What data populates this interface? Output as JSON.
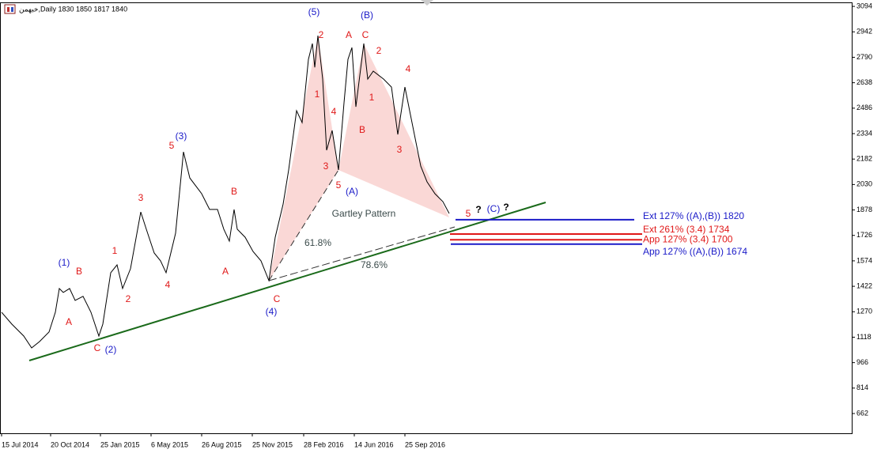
{
  "chart_data": {
    "type": "line",
    "title": "خبهمن,Daily  1830 1850 1817 1840",
    "color": "#000000",
    "x": [
      0,
      13,
      28,
      38,
      48,
      60,
      68,
      73,
      78,
      86,
      93,
      103,
      113,
      123,
      128,
      138,
      146,
      153,
      163,
      176,
      183,
      193,
      201,
      208,
      220,
      230,
      238,
      253,
      263,
      273,
      281,
      288,
      294,
      298,
      308,
      318,
      328,
      338,
      346,
      356,
      363,
      373,
      380,
      388,
      393,
      396,
      400,
      406,
      411,
      418,
      426,
      433,
      438,
      443,
      448,
      453,
      458,
      463,
      470,
      483,
      493,
      501,
      510,
      518,
      530,
      538,
      548,
      558,
      566
    ],
    "values": [
      1267,
      1196,
      1125,
      1054,
      1092,
      1149,
      1267,
      1409,
      1385,
      1409,
      1338,
      1362,
      1267,
      1125,
      1196,
      1503,
      1550,
      1409,
      1527,
      1866,
      1763,
      1621,
      1574,
      1503,
      1739,
      2225,
      2069,
      1975,
      1881,
      1881,
      1763,
      1692,
      1881,
      1763,
      1715,
      1630,
      1574,
      1456,
      1715,
      1913,
      2117,
      2471,
      2400,
      2778,
      2872,
      2730,
      2919,
      2660,
      2235,
      2353,
      2117,
      2518,
      2778,
      2848,
      2494,
      2683,
      2872,
      2660,
      2707,
      2660,
      2612,
      2329,
      2612,
      2423,
      2140,
      2046,
      1975,
      1928,
      1857
    ],
    "xlim": [
      0,
      1075
    ],
    "ylim": [
      544,
      3118
    ],
    "yticks": [
      3094,
      2942,
      2790,
      2638,
      2486,
      2334,
      2182,
      2030,
      1878,
      1726,
      1574,
      1422,
      1270,
      1118,
      966,
      814,
      662
    ],
    "xticks": [
      {
        "value": 0,
        "label": "15 Jul 2014"
      },
      {
        "value": 62,
        "label": "20 Oct 2014"
      },
      {
        "value": 125,
        "label": "25 Jan 2015"
      },
      {
        "value": 189,
        "label": "6 May 2015"
      },
      {
        "value": 253,
        "label": "26 Aug 2015"
      },
      {
        "value": 317,
        "label": "25 Nov 2015"
      },
      {
        "value": 382,
        "label": "28 Feb 2016"
      },
      {
        "value": 446,
        "label": "14 Jun 2016"
      },
      {
        "value": 510,
        "label": "25 Sep 2016"
      }
    ],
    "levels": [
      {
        "label": "Ext 127% ((A),(B))  1820",
        "value": 1820,
        "color": "#1a1ac8"
      },
      {
        "label": "Ext 261% (3.4) 1734",
        "value": 1734,
        "color": "#e01818"
      },
      {
        "label": "App 127% (3.4) 1700",
        "value": 1700,
        "color": "#e01818"
      },
      {
        "label": "App 127% ((A),(B))  1674",
        "value": 1674,
        "color": "#1a1ac8"
      }
    ],
    "annotations": [
      {
        "text": "(1)",
        "color": "#1a1ac8"
      },
      {
        "text": "(2)",
        "color": "#1a1ac8"
      },
      {
        "text": "(3)",
        "color": "#1a1ac8"
      },
      {
        "text": "(4)",
        "color": "#1a1ac8"
      },
      {
        "text": "(5)",
        "color": "#1a1ac8"
      },
      {
        "text": "(A)",
        "color": "#1a1ac8"
      },
      {
        "text": "(B)",
        "color": "#1a1ac8"
      },
      {
        "text": "(C)",
        "color": "#1a1ac8"
      },
      {
        "text": "A",
        "color": "#e01818"
      },
      {
        "text": "B",
        "color": "#e01818"
      },
      {
        "text": "C",
        "color": "#e01818"
      },
      {
        "text": "1",
        "color": "#e01818"
      },
      {
        "text": "2",
        "color": "#e01818"
      },
      {
        "text": "3",
        "color": "#e01818"
      },
      {
        "text": "4",
        "color": "#e01818"
      },
      {
        "text": "5",
        "color": "#e01818"
      },
      {
        "text": "B",
        "color": "#e01818"
      },
      {
        "text": "A",
        "color": "#e01818"
      },
      {
        "text": "C",
        "color": "#e01818"
      },
      {
        "text": "1",
        "color": "#e01818"
      },
      {
        "text": "2",
        "color": "#e01818"
      },
      {
        "text": "3",
        "color": "#e01818"
      },
      {
        "text": "4",
        "color": "#e01818"
      },
      {
        "text": "5",
        "color": "#e01818"
      },
      {
        "text": "A",
        "color": "#e01818"
      },
      {
        "text": "C",
        "color": "#e01818"
      },
      {
        "text": "2",
        "color": "#e01818"
      },
      {
        "text": "1",
        "color": "#e01818"
      },
      {
        "text": "B",
        "color": "#e01818"
      },
      {
        "text": "3",
        "color": "#e01818"
      },
      {
        "text": "4",
        "color": "#e01818"
      },
      {
        "text": "5",
        "color": "#e01818"
      },
      {
        "text": "?",
        "color": "#000000"
      },
      {
        "text": "?",
        "color": "#000000"
      },
      {
        "text": "Gartley Pattern",
        "color": "#3a4a4a"
      },
      {
        "text": "61.8%",
        "color": "#3a4a4a"
      },
      {
        "text": "78.6%",
        "color": "#3a4a4a"
      }
    ]
  }
}
